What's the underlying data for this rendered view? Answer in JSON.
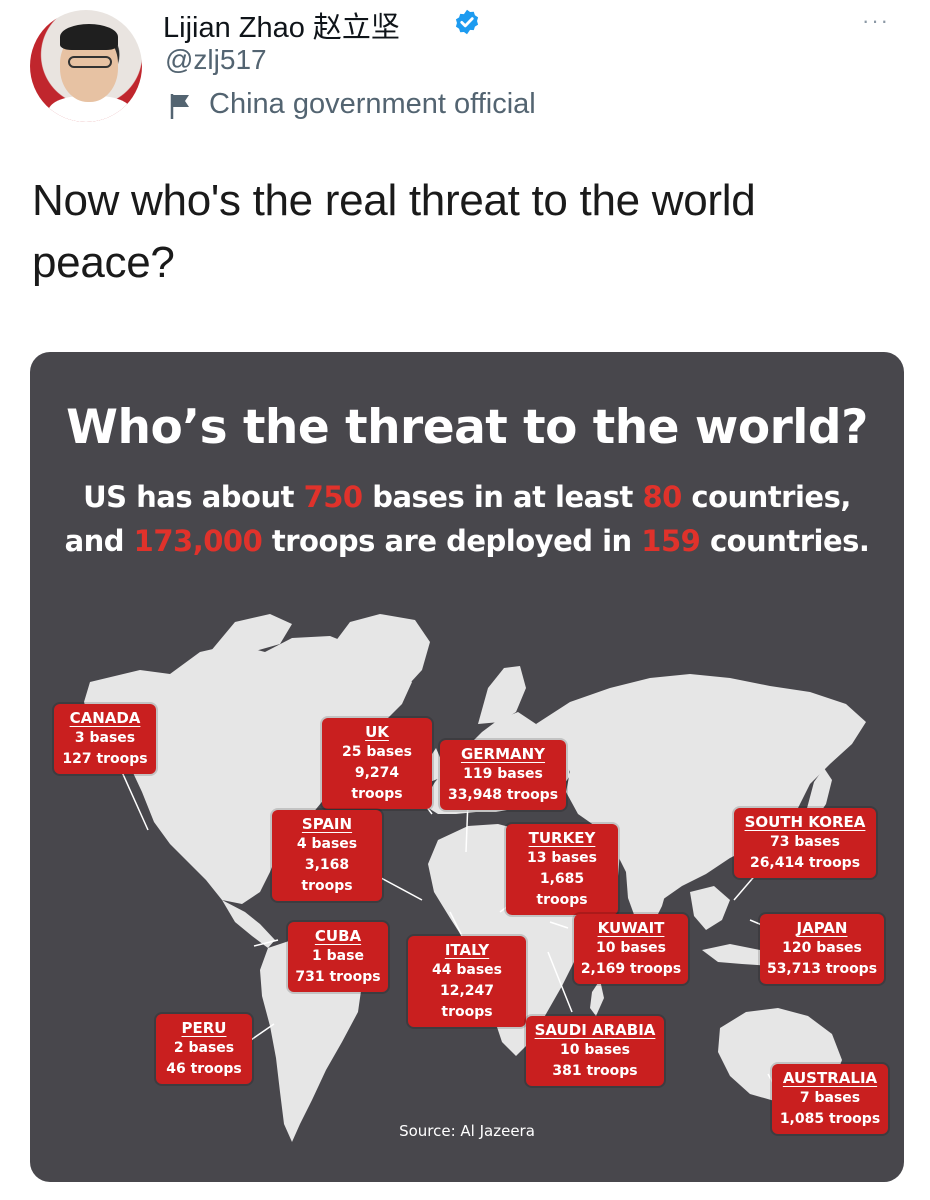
{
  "tweet": {
    "display_name": "Lijian Zhao 赵立坚",
    "handle": "@zlj517",
    "account_label": "China government official",
    "text": "Now who's the real threat to the world peace?",
    "more_label": "···"
  },
  "infographic": {
    "title": "Who’s the threat to the world?",
    "subtitle_line1": {
      "p1": "US has about ",
      "bases": "750",
      "p2": " bases in at least ",
      "countries": "80",
      "p3": " countries,"
    },
    "subtitle_line2": {
      "p1": "and ",
      "troops": "173,000",
      "p2": " troops are deployed in ",
      "countries": "159",
      "p3": " countries."
    },
    "source": "Source: Al Jazeera",
    "highlight_color": "#e0322b",
    "box_color": "#c91f1f",
    "background_color": "#48474c",
    "map_color": "#e6e6e6",
    "countries": [
      {
        "name": "CANADA",
        "bases": "3 bases",
        "troops": "127 troops"
      },
      {
        "name": "UK",
        "bases": "25 bases",
        "troops": "9,274 troops"
      },
      {
        "name": "GERMANY",
        "bases": "119 bases",
        "troops": "33,948 troops"
      },
      {
        "name": "SPAIN",
        "bases": "4 bases",
        "troops": "3,168 troops"
      },
      {
        "name": "TURKEY",
        "bases": "13 bases",
        "troops": "1,685 troops"
      },
      {
        "name": "SOUTH KOREA",
        "bases": "73 bases",
        "troops": "26,414 troops"
      },
      {
        "name": "CUBA",
        "bases": "1 base",
        "troops": "731 troops"
      },
      {
        "name": "ITALY",
        "bases": "44 bases",
        "troops": "12,247 troops"
      },
      {
        "name": "KUWAIT",
        "bases": "10 bases",
        "troops": "2,169 troops"
      },
      {
        "name": "JAPAN",
        "bases": "120 bases",
        "troops": "53,713 troops"
      },
      {
        "name": "PERU",
        "bases": "2 bases",
        "troops": "46 troops"
      },
      {
        "name": "SAUDI ARABIA",
        "bases": "10 bases",
        "troops": "381 troops"
      },
      {
        "name": "AUSTRALIA",
        "bases": "7 bases",
        "troops": "1,085 troops"
      }
    ]
  }
}
